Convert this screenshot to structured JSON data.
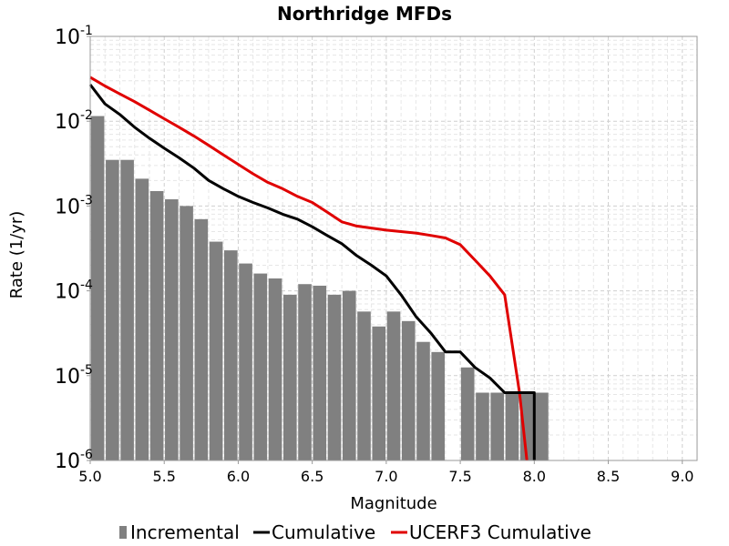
{
  "chart_data": {
    "type": "bar",
    "title": "Northridge MFDs",
    "xlabel": "Magnitude",
    "ylabel": "Rate (1/yr)",
    "xlim": [
      5.0,
      9.1
    ],
    "ylim": [
      1e-06,
      0.1
    ],
    "yscale": "log",
    "grid": true,
    "legend_position": "bottom",
    "x_ticks": [
      5.0,
      5.5,
      6.0,
      6.5,
      7.0,
      7.5,
      8.0,
      8.5,
      9.0
    ],
    "x_tick_labels": [
      "5.0",
      "5.5",
      "6.0",
      "6.5",
      "7.0",
      "7.5",
      "8.0",
      "8.5",
      "9.0"
    ],
    "y_ticks": [
      {
        "base": "10",
        "exp": "-1",
        "value": 0.1
      },
      {
        "base": "10",
        "exp": "-2",
        "value": 0.01
      },
      {
        "base": "10",
        "exp": "-3",
        "value": 0.001
      },
      {
        "base": "10",
        "exp": "-4",
        "value": 0.0001
      },
      {
        "base": "10",
        "exp": "-5",
        "value": 1e-05
      },
      {
        "base": "10",
        "exp": "-6",
        "value": 1e-06
      }
    ],
    "series": [
      {
        "name": "Incremental",
        "type": "bar",
        "color": "#808080",
        "bar_width": 0.09,
        "x": [
          5.05,
          5.15,
          5.25,
          5.35,
          5.45,
          5.55,
          5.65,
          5.75,
          5.85,
          5.95,
          6.05,
          6.15,
          6.25,
          6.35,
          6.45,
          6.55,
          6.65,
          6.75,
          6.85,
          6.95,
          7.05,
          7.15,
          7.25,
          7.35,
          7.45,
          7.55,
          7.65,
          7.75,
          7.85,
          7.95,
          8.05
        ],
        "values": [
          0.0115,
          0.0035,
          0.0035,
          0.0021,
          0.0015,
          0.0012,
          0.001,
          0.0007,
          0.00038,
          0.0003,
          0.00021,
          0.00016,
          0.00014,
          9e-05,
          0.00012,
          0.000115,
          9e-05,
          0.0001,
          5.7e-05,
          3.8e-05,
          5.7e-05,
          4.4e-05,
          2.5e-05,
          1.9e-05,
          null,
          1.25e-05,
          6.3e-06,
          6.3e-06,
          6.3e-06,
          6.3e-06,
          6.3e-06
        ]
      },
      {
        "name": "Cumulative",
        "type": "line",
        "color": "#000000",
        "x": [
          5.0,
          5.1,
          5.2,
          5.3,
          5.4,
          5.5,
          5.6,
          5.7,
          5.8,
          5.9,
          6.0,
          6.1,
          6.2,
          6.3,
          6.4,
          6.5,
          6.6,
          6.7,
          6.8,
          6.9,
          7.0,
          7.1,
          7.2,
          7.3,
          7.4,
          7.5,
          7.6,
          7.7,
          7.8,
          7.9,
          8.0,
          8.0
        ],
        "values": [
          0.027,
          0.016,
          0.012,
          0.0085,
          0.0063,
          0.0048,
          0.0037,
          0.0028,
          0.002,
          0.0016,
          0.0013,
          0.0011,
          0.00095,
          0.0008,
          0.0007,
          0.00057,
          0.00045,
          0.00036,
          0.00026,
          0.0002,
          0.00015,
          9e-05,
          5e-05,
          3.2e-05,
          1.9e-05,
          1.9e-05,
          1.25e-05,
          9.4e-06,
          6.3e-06,
          6.3e-06,
          6.3e-06,
          1e-06
        ]
      },
      {
        "name": "UCERF3 Cumulative",
        "type": "line",
        "color": "#e00000",
        "x": [
          5.0,
          5.1,
          5.2,
          5.3,
          5.4,
          5.5,
          5.6,
          5.7,
          5.8,
          5.9,
          6.0,
          6.1,
          6.2,
          6.3,
          6.4,
          6.5,
          6.6,
          6.7,
          6.8,
          6.9,
          7.0,
          7.1,
          7.2,
          7.3,
          7.4,
          7.5,
          7.6,
          7.7,
          7.8,
          7.9,
          7.95
        ],
        "values": [
          0.033,
          0.026,
          0.021,
          0.017,
          0.0135,
          0.0107,
          0.0085,
          0.0067,
          0.0052,
          0.004,
          0.0031,
          0.0024,
          0.0019,
          0.0016,
          0.0013,
          0.0011,
          0.00085,
          0.00065,
          0.00058,
          0.00055,
          0.00052,
          0.0005,
          0.00048,
          0.00045,
          0.00042,
          0.00035,
          0.00023,
          0.00015,
          9e-05,
          6.3e-06,
          1e-06
        ]
      }
    ]
  }
}
